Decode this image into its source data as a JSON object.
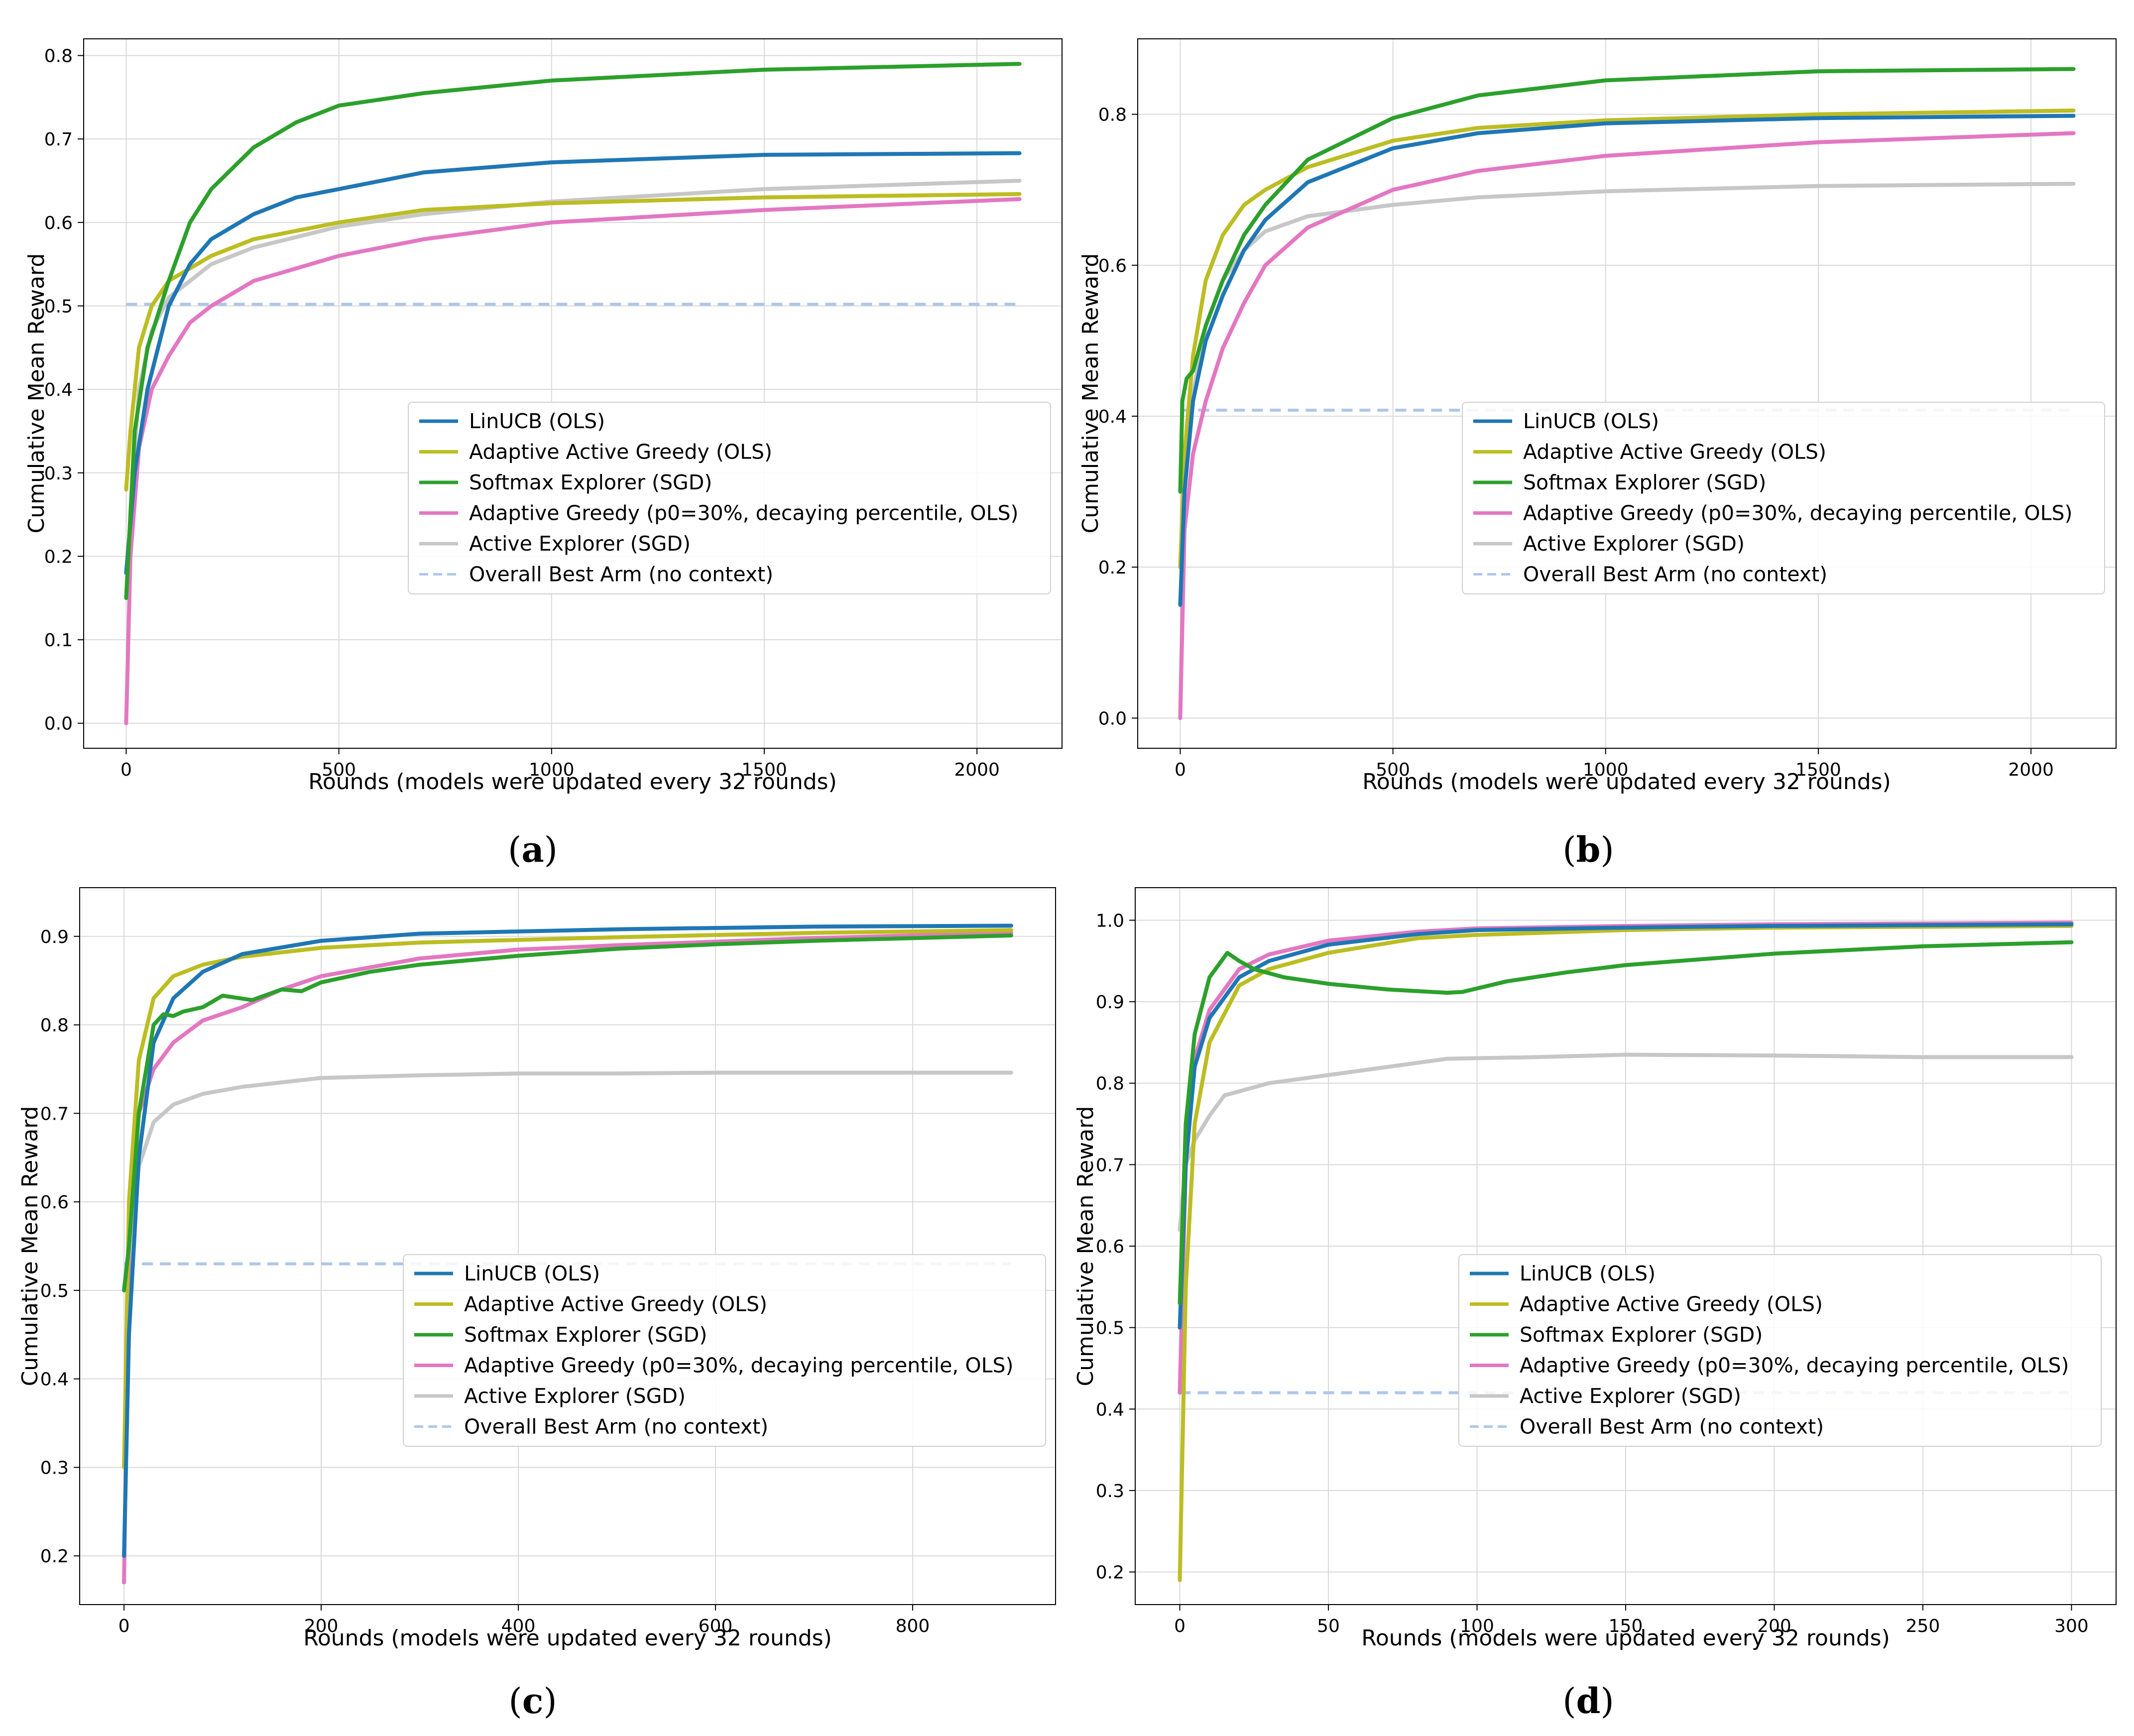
{
  "legend_labels": [
    "LinUCB (OLS)",
    "Adaptive Active Greedy (OLS)",
    "Softmax Explorer (SGD)",
    "Adaptive Greedy (p0=30%, decaying percentile, OLS)",
    "Active Explorer (SGD)",
    "Overall Best Arm (no context)"
  ],
  "series_colors": [
    "#1f77b4",
    "#bcbd22",
    "#2ca02c",
    "#e377c2",
    "#c7c7c7",
    "#aec7e8"
  ],
  "chart_data": [
    {
      "type": "line",
      "panel_label": "a",
      "xlabel": "Rounds (models were updated every 32 rounds)",
      "ylabel": "Cumulative Mean Reward",
      "xlim": [
        -100,
        2200
      ],
      "ylim": [
        -0.03,
        0.82
      ],
      "xticks": [
        0,
        500,
        1000,
        1500,
        2000
      ],
      "yticks": [
        0.0,
        0.1,
        0.2,
        0.3,
        0.4,
        0.5,
        0.6,
        0.7,
        0.8
      ],
      "ytick_labels": [
        "0.0",
        "0.1",
        "0.2",
        "0.3",
        "0.4",
        "0.5",
        "0.6",
        "0.7",
        "0.8"
      ],
      "grid": true,
      "legend_position": "center-right",
      "series": [
        {
          "name": "LinUCB (OLS)",
          "x": [
            0,
            20,
            50,
            100,
            150,
            200,
            300,
            400,
            500,
            700,
            1000,
            1500,
            2100
          ],
          "values": [
            0.18,
            0.3,
            0.4,
            0.5,
            0.55,
            0.58,
            0.61,
            0.63,
            0.64,
            0.66,
            0.672,
            0.681,
            0.683
          ]
        },
        {
          "name": "Adaptive Active Greedy (OLS)",
          "x": [
            0,
            10,
            30,
            60,
            100,
            150,
            200,
            300,
            500,
            700,
            1000,
            1500,
            2100
          ],
          "values": [
            0.28,
            0.35,
            0.45,
            0.5,
            0.53,
            0.545,
            0.56,
            0.58,
            0.6,
            0.615,
            0.623,
            0.63,
            0.634
          ]
        },
        {
          "name": "Softmax Explorer (SGD)",
          "x": [
            0,
            20,
            50,
            100,
            150,
            200,
            300,
            400,
            500,
            700,
            1000,
            1500,
            2100
          ],
          "values": [
            0.15,
            0.35,
            0.45,
            0.53,
            0.6,
            0.64,
            0.69,
            0.72,
            0.74,
            0.755,
            0.77,
            0.783,
            0.79
          ]
        },
        {
          "name": "Adaptive Greedy (p0=30%, decaying percentile, OLS)",
          "x": [
            0,
            10,
            30,
            60,
            100,
            150,
            200,
            300,
            500,
            700,
            1000,
            1500,
            2100
          ],
          "values": [
            0.0,
            0.2,
            0.33,
            0.4,
            0.44,
            0.48,
            0.5,
            0.53,
            0.56,
            0.58,
            0.6,
            0.615,
            0.628
          ]
        },
        {
          "name": "Active Explorer (SGD)",
          "x": [
            0,
            10,
            30,
            60,
            100,
            150,
            200,
            300,
            500,
            700,
            1000,
            1500,
            2100
          ],
          "values": [
            0.15,
            0.25,
            0.4,
            0.47,
            0.51,
            0.53,
            0.55,
            0.57,
            0.595,
            0.61,
            0.625,
            0.64,
            0.65
          ]
        },
        {
          "name": "Overall Best Arm (no context)",
          "x": [
            0,
            2100
          ],
          "values": [
            0.502,
            0.502
          ],
          "dashed": true
        }
      ]
    },
    {
      "type": "line",
      "panel_label": "b",
      "xlabel": "Rounds (models were updated every 32 rounds)",
      "ylabel": "Cumulative Mean Reward",
      "xlim": [
        -100,
        2200
      ],
      "ylim": [
        -0.04,
        0.9
      ],
      "xticks": [
        0,
        500,
        1000,
        1500,
        2000
      ],
      "yticks": [
        0.0,
        0.2,
        0.4,
        0.6,
        0.8
      ],
      "ytick_labels": [
        "0.0",
        "0.2",
        "0.4",
        "0.6",
        "0.8"
      ],
      "grid": true,
      "legend_position": "lower-right",
      "series": [
        {
          "name": "LinUCB (OLS)",
          "x": [
            0,
            10,
            30,
            60,
            100,
            150,
            200,
            300,
            500,
            700,
            1000,
            1500,
            2100
          ],
          "values": [
            0.15,
            0.3,
            0.42,
            0.5,
            0.56,
            0.62,
            0.66,
            0.71,
            0.755,
            0.775,
            0.788,
            0.795,
            0.798
          ]
        },
        {
          "name": "Adaptive Active Greedy (OLS)",
          "x": [
            0,
            10,
            30,
            60,
            100,
            150,
            200,
            300,
            500,
            700,
            1000,
            1500,
            2100
          ],
          "values": [
            0.2,
            0.35,
            0.48,
            0.58,
            0.64,
            0.68,
            0.7,
            0.73,
            0.765,
            0.782,
            0.792,
            0.8,
            0.805
          ]
        },
        {
          "name": "Softmax Explorer (SGD)",
          "x": [
            0,
            5,
            15,
            30,
            60,
            100,
            150,
            200,
            300,
            500,
            700,
            1000,
            1500,
            2100
          ],
          "values": [
            0.3,
            0.42,
            0.45,
            0.46,
            0.52,
            0.58,
            0.64,
            0.68,
            0.74,
            0.795,
            0.825,
            0.845,
            0.857,
            0.86
          ]
        },
        {
          "name": "Adaptive Greedy (p0=30%, decaying percentile, OLS)",
          "x": [
            0,
            10,
            30,
            60,
            100,
            150,
            200,
            300,
            500,
            700,
            1000,
            1500,
            2100
          ],
          "values": [
            0.0,
            0.25,
            0.35,
            0.42,
            0.49,
            0.55,
            0.6,
            0.65,
            0.7,
            0.725,
            0.745,
            0.763,
            0.775
          ]
        },
        {
          "name": "Active Explorer (SGD)",
          "x": [
            0,
            10,
            30,
            60,
            100,
            150,
            200,
            300,
            500,
            700,
            1000,
            1500,
            2100
          ],
          "values": [
            0.0,
            0.3,
            0.43,
            0.52,
            0.58,
            0.62,
            0.645,
            0.665,
            0.68,
            0.69,
            0.698,
            0.705,
            0.708
          ]
        },
        {
          "name": "Overall Best Arm (no context)",
          "x": [
            0,
            2100
          ],
          "values": [
            0.408,
            0.408
          ],
          "dashed": true
        }
      ]
    },
    {
      "type": "line",
      "panel_label": "c",
      "xlabel": "Rounds (models were updated every 32 rounds)",
      "ylabel": "Cumulative Mean Reward",
      "xlim": [
        -45,
        945
      ],
      "ylim": [
        0.145,
        0.955
      ],
      "xticks": [
        0,
        200,
        400,
        600,
        800
      ],
      "yticks": [
        0.2,
        0.3,
        0.4,
        0.5,
        0.6,
        0.7,
        0.8,
        0.9
      ],
      "ytick_labels": [
        "0.2",
        "0.3",
        "0.4",
        "0.5",
        "0.6",
        "0.7",
        "0.8",
        "0.9"
      ],
      "grid": true,
      "legend_position": "lower-right",
      "series": [
        {
          "name": "LinUCB (OLS)",
          "x": [
            0,
            5,
            15,
            30,
            50,
            80,
            120,
            200,
            300,
            500,
            700,
            900
          ],
          "values": [
            0.2,
            0.45,
            0.65,
            0.78,
            0.83,
            0.86,
            0.88,
            0.895,
            0.903,
            0.908,
            0.911,
            0.912
          ]
        },
        {
          "name": "Adaptive Active Greedy (OLS)",
          "x": [
            0,
            5,
            15,
            30,
            50,
            80,
            120,
            200,
            300,
            500,
            700,
            900
          ],
          "values": [
            0.3,
            0.6,
            0.76,
            0.83,
            0.855,
            0.868,
            0.877,
            0.887,
            0.893,
            0.899,
            0.904,
            0.907
          ]
        },
        {
          "name": "Softmax Explorer (SGD)",
          "x": [
            0,
            5,
            15,
            30,
            40,
            50,
            60,
            80,
            100,
            130,
            160,
            180,
            200,
            250,
            300,
            400,
            500,
            600,
            700,
            900
          ],
          "values": [
            0.5,
            0.55,
            0.7,
            0.8,
            0.812,
            0.81,
            0.815,
            0.82,
            0.833,
            0.828,
            0.84,
            0.838,
            0.848,
            0.86,
            0.868,
            0.878,
            0.886,
            0.891,
            0.895,
            0.901
          ]
        },
        {
          "name": "Adaptive Greedy (p0=30%, decaying percentile, OLS)",
          "x": [
            0,
            5,
            15,
            30,
            50,
            80,
            120,
            160,
            200,
            300,
            400,
            500,
            700,
            900
          ],
          "values": [
            0.17,
            0.55,
            0.7,
            0.75,
            0.78,
            0.805,
            0.82,
            0.84,
            0.855,
            0.875,
            0.885,
            0.89,
            0.898,
            0.904
          ]
        },
        {
          "name": "Active Explorer (SGD)",
          "x": [
            0,
            5,
            15,
            30,
            50,
            80,
            120,
            160,
            200,
            300,
            400,
            500,
            600,
            700,
            900
          ],
          "values": [
            0.3,
            0.5,
            0.64,
            0.69,
            0.71,
            0.722,
            0.73,
            0.735,
            0.74,
            0.743,
            0.745,
            0.745,
            0.746,
            0.746,
            0.746
          ]
        },
        {
          "name": "Overall Best Arm (no context)",
          "x": [
            0,
            900
          ],
          "values": [
            0.53,
            0.53
          ],
          "dashed": true
        }
      ]
    },
    {
      "type": "line",
      "panel_label": "d",
      "xlabel": "Rounds (models were updated every 32 rounds)",
      "ylabel": "Cumulative Mean Reward",
      "xlim": [
        -15,
        315
      ],
      "ylim": [
        0.16,
        1.04
      ],
      "xticks": [
        0,
        50,
        100,
        150,
        200,
        250,
        300
      ],
      "yticks": [
        0.2,
        0.3,
        0.4,
        0.5,
        0.6,
        0.7,
        0.8,
        0.9,
        1.0
      ],
      "ytick_labels": [
        "0.2",
        "0.3",
        "0.4",
        "0.5",
        "0.6",
        "0.7",
        "0.8",
        "0.9",
        "1.0"
      ],
      "grid": true,
      "legend_position": "lower-right",
      "series": [
        {
          "name": "LinUCB (OLS)",
          "x": [
            0,
            2,
            5,
            10,
            20,
            30,
            50,
            80,
            100,
            150,
            200,
            300
          ],
          "values": [
            0.5,
            0.7,
            0.82,
            0.88,
            0.93,
            0.95,
            0.97,
            0.983,
            0.988,
            0.991,
            0.993,
            0.995
          ]
        },
        {
          "name": "Adaptive Active Greedy (OLS)",
          "x": [
            0,
            2,
            5,
            10,
            20,
            30,
            50,
            80,
            100,
            150,
            200,
            300
          ],
          "values": [
            0.19,
            0.55,
            0.75,
            0.85,
            0.92,
            0.94,
            0.96,
            0.978,
            0.982,
            0.988,
            0.991,
            0.993
          ]
        },
        {
          "name": "Softmax Explorer (SGD)",
          "x": [
            0,
            2,
            5,
            10,
            16,
            20,
            25,
            35,
            50,
            70,
            90,
            95,
            110,
            130,
            150,
            200,
            250,
            300
          ],
          "values": [
            0.53,
            0.75,
            0.86,
            0.93,
            0.96,
            0.95,
            0.94,
            0.93,
            0.922,
            0.915,
            0.911,
            0.912,
            0.925,
            0.936,
            0.945,
            0.959,
            0.968,
            0.973
          ]
        },
        {
          "name": "Adaptive Greedy (p0=30%, decaying percentile, OLS)",
          "x": [
            0,
            2,
            5,
            10,
            20,
            30,
            50,
            80,
            100,
            150,
            200,
            300
          ],
          "values": [
            0.42,
            0.7,
            0.83,
            0.89,
            0.94,
            0.958,
            0.975,
            0.986,
            0.99,
            0.993,
            0.995,
            0.997
          ]
        },
        {
          "name": "Active Explorer (SGD)",
          "x": [
            0,
            2,
            5,
            10,
            15,
            20,
            30,
            50,
            70,
            90,
            120,
            150,
            200,
            250,
            300
          ],
          "values": [
            0.62,
            0.7,
            0.73,
            0.76,
            0.785,
            0.79,
            0.8,
            0.81,
            0.82,
            0.83,
            0.832,
            0.835,
            0.834,
            0.832,
            0.832
          ]
        },
        {
          "name": "Overall Best Arm (no context)",
          "x": [
            0,
            300
          ],
          "values": [
            0.42,
            0.42
          ],
          "dashed": true
        }
      ]
    }
  ]
}
